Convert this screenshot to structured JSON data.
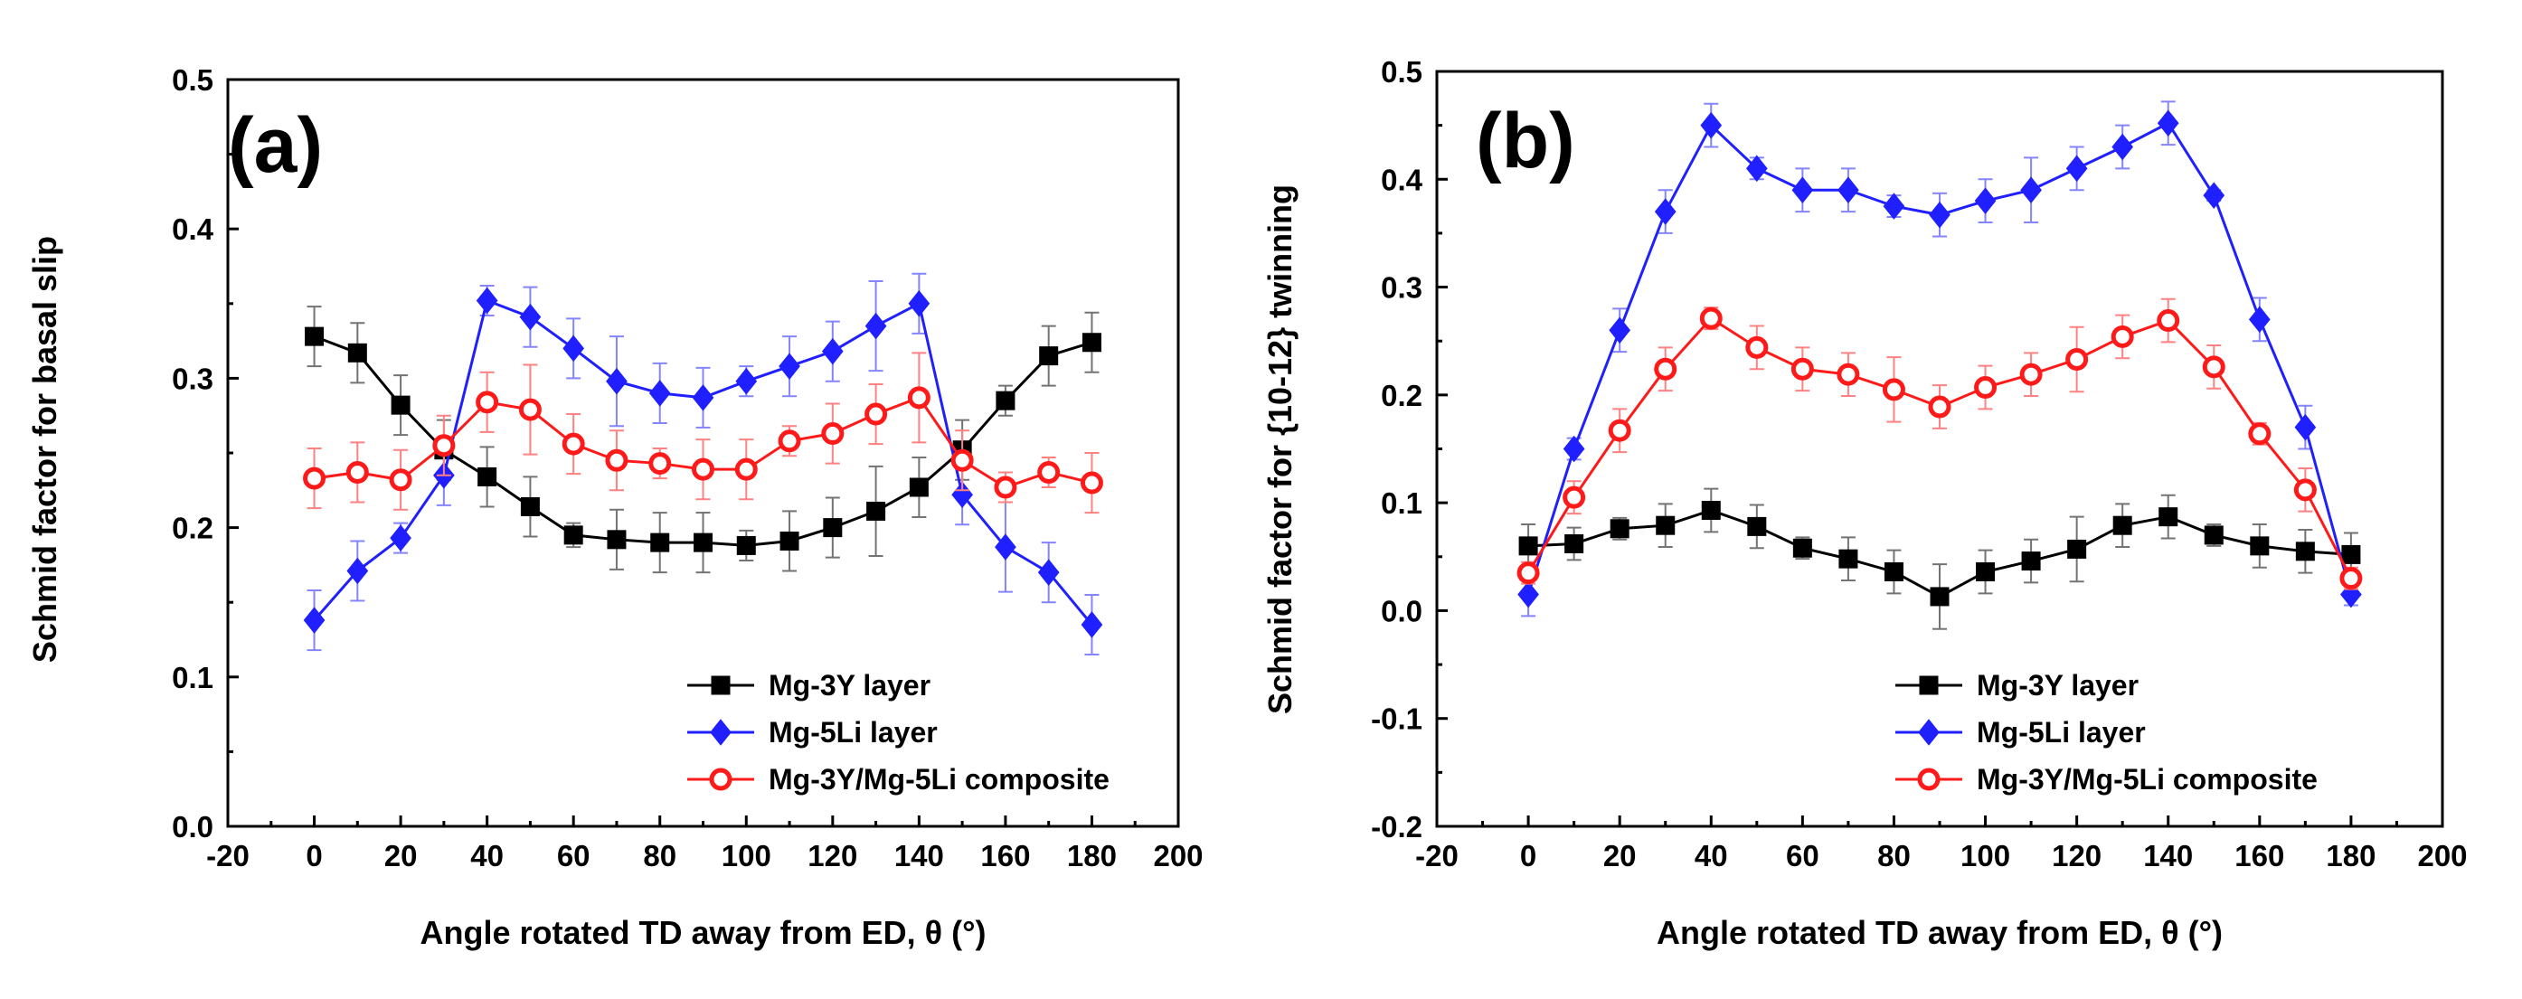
{
  "chart_data": [
    {
      "type": "line",
      "panel_label": "(a)",
      "xlabel": "Angle rotated TD away from ED, θ (°)",
      "ylabel": "Schmid factor for basal slip",
      "xlim": [
        -20,
        200
      ],
      "ylim": [
        0.0,
        0.5
      ],
      "xticks": [
        -20,
        0,
        20,
        40,
        60,
        80,
        100,
        120,
        140,
        160,
        180,
        200
      ],
      "xtick_labels": [
        "-20",
        "0",
        "20",
        "40",
        "60",
        "80",
        "100",
        "120",
        "140",
        "160",
        "180",
        "200"
      ],
      "yticks": [
        0.0,
        0.1,
        0.2,
        0.3,
        0.4,
        0.5
      ],
      "ytick_labels": [
        "0.0",
        "0.1",
        "0.2",
        "0.3",
        "0.4",
        "0.5"
      ],
      "legend_position": "bottom-right",
      "x": [
        0,
        10,
        20,
        30,
        40,
        50,
        60,
        70,
        80,
        90,
        100,
        110,
        120,
        130,
        140,
        150,
        160,
        170,
        180
      ],
      "series": [
        {
          "name": "Mg-3Y layer",
          "color": "#000000",
          "marker": "square",
          "values": [
            0.328,
            0.317,
            0.282,
            0.252,
            0.234,
            0.214,
            0.195,
            0.192,
            0.19,
            0.19,
            0.188,
            0.191,
            0.2,
            0.211,
            0.227,
            0.252,
            0.285,
            0.315,
            0.324
          ],
          "errors": [
            0.02,
            0.02,
            0.02,
            0.02,
            0.02,
            0.02,
            0.008,
            0.02,
            0.02,
            0.02,
            0.01,
            0.02,
            0.02,
            0.03,
            0.02,
            0.02,
            0.01,
            0.02,
            0.02
          ]
        },
        {
          "name": "Mg-5Li layer",
          "color": "#1f1fff",
          "marker": "diamond",
          "values": [
            0.138,
            0.171,
            0.193,
            0.235,
            0.352,
            0.341,
            0.32,
            0.298,
            0.29,
            0.287,
            0.298,
            0.308,
            0.318,
            0.335,
            0.35,
            0.222,
            0.187,
            0.17,
            0.135
          ],
          "errors": [
            0.02,
            0.02,
            0.01,
            0.02,
            0.01,
            0.02,
            0.02,
            0.03,
            0.02,
            0.02,
            0.01,
            0.02,
            0.02,
            0.03,
            0.02,
            0.02,
            0.03,
            0.02,
            0.02
          ]
        },
        {
          "name": "Mg-3Y/Mg-5Li composite",
          "color": "#ff1a1a",
          "marker": "circle",
          "values": [
            0.233,
            0.237,
            0.232,
            0.255,
            0.284,
            0.279,
            0.256,
            0.245,
            0.243,
            0.239,
            0.239,
            0.258,
            0.263,
            0.276,
            0.287,
            0.245,
            0.227,
            0.237,
            0.23
          ],
          "errors": [
            0.02,
            0.02,
            0.02,
            0.02,
            0.02,
            0.03,
            0.02,
            0.02,
            0.01,
            0.02,
            0.02,
            0.01,
            0.02,
            0.02,
            0.03,
            0.02,
            0.01,
            0.01,
            0.02
          ]
        }
      ]
    },
    {
      "type": "line",
      "panel_label": "(b)",
      "xlabel": "Angle rotated TD away from ED, θ (°)",
      "ylabel": "Schmid factor for {10-12} twinning",
      "xlim": [
        -20,
        200
      ],
      "ylim": [
        -0.2,
        0.5
      ],
      "xticks": [
        -20,
        0,
        20,
        40,
        60,
        80,
        100,
        120,
        140,
        160,
        180,
        200
      ],
      "xtick_labels": [
        "-20",
        "0",
        "20",
        "40",
        "60",
        "80",
        "100",
        "120",
        "140",
        "160",
        "180",
        "200"
      ],
      "yticks": [
        -0.2,
        -0.1,
        0.0,
        0.1,
        0.2,
        0.3,
        0.4,
        0.5
      ],
      "ytick_labels": [
        "-0.2",
        "-0.1",
        "0.0",
        "0.1",
        "0.2",
        "0.3",
        "0.4",
        "0.5"
      ],
      "legend_position": "bottom-right",
      "x": [
        0,
        10,
        20,
        30,
        40,
        50,
        60,
        70,
        80,
        90,
        100,
        110,
        120,
        130,
        140,
        150,
        160,
        170,
        180
      ],
      "series": [
        {
          "name": "Mg-3Y layer",
          "color": "#000000",
          "marker": "square",
          "values": [
            0.06,
            0.062,
            0.076,
            0.079,
            0.093,
            0.078,
            0.058,
            0.048,
            0.036,
            0.013,
            0.036,
            0.046,
            0.057,
            0.079,
            0.087,
            0.07,
            0.06,
            0.055,
            0.052
          ],
          "errors": [
            0.02,
            0.015,
            0.01,
            0.02,
            0.02,
            0.02,
            0.01,
            0.02,
            0.02,
            0.03,
            0.02,
            0.02,
            0.03,
            0.02,
            0.02,
            0.01,
            0.02,
            0.02,
            0.02
          ]
        },
        {
          "name": "Mg-5Li layer",
          "color": "#1f1fff",
          "marker": "diamond",
          "values": [
            0.015,
            0.15,
            0.26,
            0.37,
            0.45,
            0.41,
            0.39,
            0.39,
            0.375,
            0.367,
            0.38,
            0.39,
            0.41,
            0.43,
            0.452,
            0.385,
            0.27,
            0.17,
            0.015
          ],
          "errors": [
            0.02,
            0.01,
            0.02,
            0.02,
            0.02,
            0.01,
            0.02,
            0.02,
            0.01,
            0.02,
            0.02,
            0.03,
            0.02,
            0.02,
            0.02,
            0.005,
            0.02,
            0.02,
            0.01
          ]
        },
        {
          "name": "Mg-3Y/Mg-5Li composite",
          "color": "#ff1a1a",
          "marker": "circle",
          "values": [
            0.035,
            0.105,
            0.167,
            0.224,
            0.271,
            0.244,
            0.224,
            0.219,
            0.205,
            0.189,
            0.207,
            0.219,
            0.233,
            0.254,
            0.269,
            0.226,
            0.164,
            0.112,
            0.03
          ],
          "errors": [
            0.01,
            0.015,
            0.02,
            0.02,
            0.01,
            0.02,
            0.02,
            0.02,
            0.03,
            0.02,
            0.02,
            0.02,
            0.03,
            0.02,
            0.02,
            0.02,
            0.01,
            0.02,
            0.01
          ]
        }
      ]
    }
  ]
}
